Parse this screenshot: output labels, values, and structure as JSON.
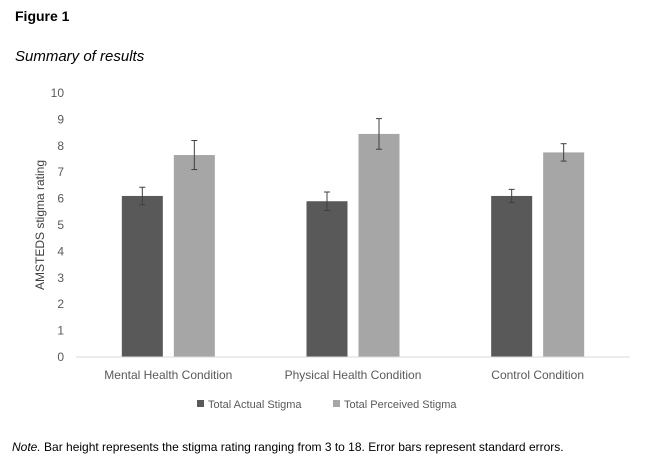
{
  "figure_label": "Figure 1",
  "figure_title": "Summary of results",
  "note": {
    "prefix": "Note.",
    "text": " Bar height represents the stigma rating ranging from 3 to 18. Error bars represent standard errors."
  },
  "colors": {
    "actual": "#595959",
    "perceived": "#a6a6a6",
    "axis": "#d9d9d9",
    "errorbar": "#404040"
  },
  "chart_data": {
    "type": "bar",
    "title": "",
    "xlabel": "",
    "ylabel": "AMSTEDS stigma rating",
    "ylim": [
      0,
      10
    ],
    "yticks": [
      0,
      1,
      2,
      3,
      4,
      5,
      6,
      7,
      8,
      9,
      10
    ],
    "grid": false,
    "legend_position": "bottom",
    "categories": [
      "Mental Health Condition",
      "Physical Health Condition",
      "Control Condition"
    ],
    "series": [
      {
        "name": "Total Actual Stigma",
        "values": [
          6.1,
          5.9,
          6.1
        ],
        "errors": [
          0.33,
          0.35,
          0.25
        ]
      },
      {
        "name": "Total Perceived Stigma",
        "values": [
          7.65,
          8.45,
          7.75
        ],
        "errors": [
          0.55,
          0.58,
          0.33
        ]
      }
    ]
  }
}
